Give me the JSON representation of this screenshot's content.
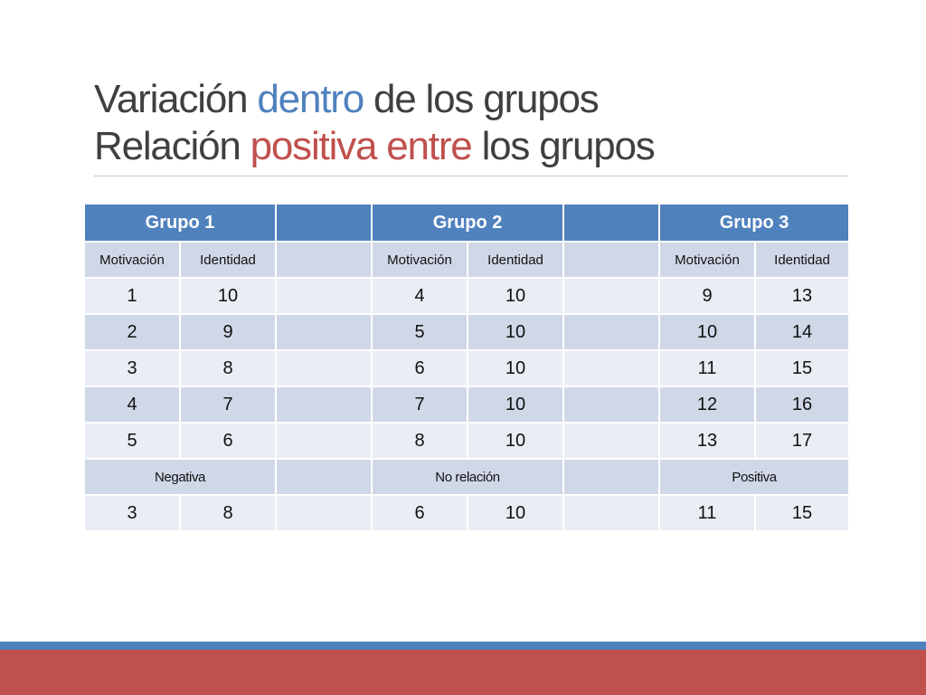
{
  "title": {
    "line1": {
      "a": "Variación ",
      "b": "dentro",
      "c": " de los grupos"
    },
    "line2": {
      "a": "Relación ",
      "b": "positiva entre",
      "c": " los grupos"
    }
  },
  "colors": {
    "title_gray": "#404040",
    "accent_blue": "#4f81bd",
    "accent_red": "#c0504d"
  },
  "table": {
    "groups": [
      "Grupo 1",
      "Grupo 2",
      "Grupo 3"
    ],
    "sub_headers": [
      "Motivación",
      "Identidad"
    ],
    "rows": [
      [
        "1",
        "10",
        "4",
        "10",
        "9",
        "13"
      ],
      [
        "2",
        "9",
        "5",
        "10",
        "10",
        "14"
      ],
      [
        "3",
        "8",
        "6",
        "10",
        "11",
        "15"
      ],
      [
        "4",
        "7",
        "7",
        "10",
        "12",
        "16"
      ],
      [
        "5",
        "6",
        "8",
        "10",
        "13",
        "17"
      ]
    ],
    "relation_labels": [
      "Negativa",
      "No relación",
      "Positiva"
    ],
    "summary_row": [
      "3",
      "8",
      "6",
      "10",
      "11",
      "15"
    ]
  }
}
